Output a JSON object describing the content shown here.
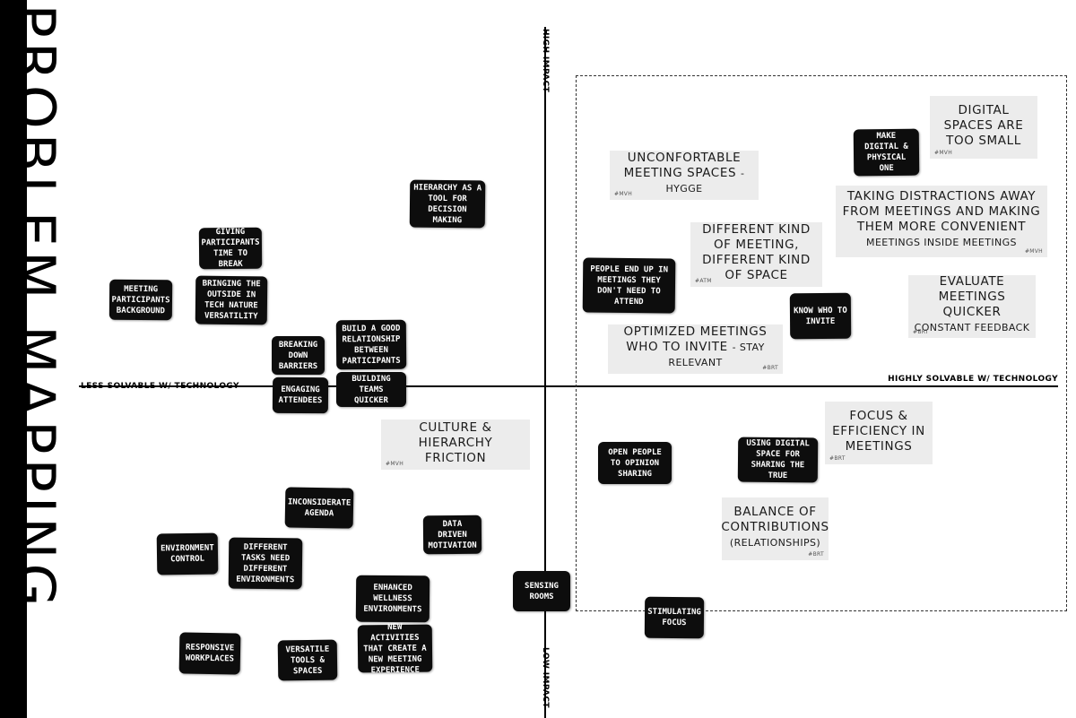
{
  "title": "PROBLEM MAPPING",
  "axes": {
    "left": "LESS SOLVABLE W/ TECHNOLOGY",
    "right": "HIGHLY SOLVABLE W/ TECHNOLOGY",
    "top": "HIGH IMPACT",
    "bottom": "LOW IMPACT"
  },
  "notes": [
    {
      "id": "meeting-participants-background",
      "text": "MEETING PARTICIPANTS BACKGROUND"
    },
    {
      "id": "giving-participants-time-to-break",
      "text": "GIVING PARTICIPANTS TIME TO BREAK"
    },
    {
      "id": "bringing-the-outside-in",
      "text": "BRINGING THE OUTSIDE IN TECH NATURE VERSATILITY"
    },
    {
      "id": "hierarchy-as-a-tool",
      "text": "HIERARCHY AS A TOOL FOR DECISION MAKING"
    },
    {
      "id": "breaking-down-barriers",
      "text": "BREAKING DOWN BARRIERS"
    },
    {
      "id": "build-a-good-relationship",
      "text": "BUILD A GOOD RELATIONSHIP BETWEEN PARTICIPANTS"
    },
    {
      "id": "engaging-attendees",
      "text": "ENGAGING ATTENDEES"
    },
    {
      "id": "building-teams-quicker",
      "text": "BUILDING TEAMS QUICKER"
    },
    {
      "id": "inconsiderate-agenda",
      "text": "INCONSIDERATE AGENDA"
    },
    {
      "id": "environment-control",
      "text": "ENVIRONMENT CONTROL"
    },
    {
      "id": "different-tasks",
      "text": "DIFFERENT TASKS NEED DIFFERENT ENVIRONMENTS"
    },
    {
      "id": "data-driven-motivation",
      "text": "DATA DRIVEN MOTIVATION"
    },
    {
      "id": "enhanced-wellness",
      "text": "ENHANCED WELLNESS ENVIRONMENTS"
    },
    {
      "id": "new-activities",
      "text": "NEW ACTIVITIES THAT CREATE A NEW MEETING EXPERIENCE"
    },
    {
      "id": "responsive-workplaces",
      "text": "RESPONSIVE WORKPLACES"
    },
    {
      "id": "versatile-tools",
      "text": "VERSATILE TOOLS & SPACES"
    },
    {
      "id": "sensing-rooms",
      "text": "SENSING ROOMS"
    },
    {
      "id": "stimulating-focus",
      "text": "STIMULATING FOCUS"
    },
    {
      "id": "make-digital-physical",
      "text": "MAKE DIGITAL & PHYSICAL ONE"
    },
    {
      "id": "people-end-up",
      "text": "PEOPLE END UP IN MEETINGS THEY DON'T NEED TO ATTEND"
    },
    {
      "id": "know-who-to-invite",
      "text": "KNOW WHO TO INVITE"
    },
    {
      "id": "open-people",
      "text": "OPEN PEOPLE TO OPINION SHARING"
    },
    {
      "id": "using-digital-space",
      "text": "USING DIGITAL SPACE FOR SHARING THE TRUE"
    }
  ],
  "cards": [
    {
      "id": "digital-spaces-too-small",
      "main": "DIGITAL SPACES ARE TOO SMALL",
      "sub": "",
      "tag": "#MVH"
    },
    {
      "id": "unconfortable-meeting-spaces",
      "main": "UNCONFORTABLE MEETING SPACES",
      "sub": "- HYGGE",
      "tag": "#MVH"
    },
    {
      "id": "taking-distractions-away",
      "main": "TAKING DISTRACTIONS AWAY FROM MEETINGS AND MAKING THEM MORE CONVENIENT",
      "sub": "MEETINGS INSIDE MEETINGS",
      "tag": "#MVH"
    },
    {
      "id": "different-kind-of-meeting",
      "main": "DIFFERENT KIND OF MEETING, DIFFERENT KIND OF SPACE",
      "sub": "",
      "tag": "#ATM"
    },
    {
      "id": "evaluate-meetings-quicker",
      "main": "EVALUATE MEETINGS QUICKER",
      "sub": "CONSTANT FEEDBACK",
      "tag": "#BRT"
    },
    {
      "id": "optimized-meetings",
      "main": "OPTIMIZED MEETINGS WHO TO INVITE",
      "sub": "- STAY RELEVANT",
      "tag": "#BRT"
    },
    {
      "id": "culture-hierarchy-friction",
      "main": "CULTURE & HIERARCHY FRICTION",
      "sub": "",
      "tag": "#MVH"
    },
    {
      "id": "focus-efficiency",
      "main": "FOCUS & EFFICIENCY IN MEETINGS",
      "sub": "",
      "tag": "#BRT"
    },
    {
      "id": "balance-of-contributions",
      "main": "BALANCE OF CONTRIBUTIONS",
      "sub": "(RELATIONSHIPS)",
      "tag": "#BRT"
    }
  ]
}
